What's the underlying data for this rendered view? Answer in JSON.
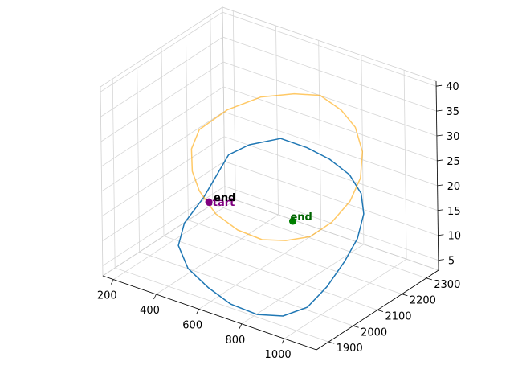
{
  "chart_data": {
    "type": "line3d",
    "title": "",
    "xlabel": "",
    "ylabel": "",
    "zlabel": "",
    "xlim": [
      150,
      1150
    ],
    "ylim": [
      1850,
      2350
    ],
    "zlim": [
      3,
      41
    ],
    "xticks": [
      200,
      400,
      600,
      800,
      1000
    ],
    "yticks": [
      1900,
      2000,
      2100,
      2200,
      2300
    ],
    "zticks": [
      5,
      10,
      15,
      20,
      25,
      30,
      35,
      40
    ],
    "series": [
      {
        "color": "#1f77b4",
        "alpha": 1.0,
        "points": [
          [
            390,
            2160,
            21
          ],
          [
            430,
            2210,
            22
          ],
          [
            520,
            2260,
            23
          ],
          [
            620,
            2280,
            22
          ],
          [
            720,
            2285,
            21
          ],
          [
            830,
            2270,
            20
          ],
          [
            930,
            2230,
            19
          ],
          [
            1010,
            2170,
            18
          ],
          [
            1060,
            2100,
            16
          ],
          [
            1080,
            2030,
            14
          ],
          [
            1075,
            1960,
            11
          ],
          [
            1040,
            1910,
            8
          ],
          [
            960,
            1880,
            6
          ],
          [
            850,
            1870,
            5
          ],
          [
            720,
            1875,
            5
          ],
          [
            600,
            1890,
            6
          ],
          [
            470,
            1920,
            7
          ],
          [
            380,
            1960,
            9
          ],
          [
            340,
            2020,
            11
          ],
          [
            350,
            2090,
            14
          ],
          [
            390,
            2160,
            21
          ]
        ]
      },
      {
        "color": "#ffa500",
        "alpha": 0.6,
        "points": [
          [
            300,
            2120,
            26
          ],
          [
            340,
            2200,
            28
          ],
          [
            430,
            2260,
            30
          ],
          [
            540,
            2300,
            31
          ],
          [
            650,
            2310,
            32
          ],
          [
            760,
            2300,
            31
          ],
          [
            860,
            2270,
            30
          ],
          [
            950,
            2220,
            28
          ],
          [
            1020,
            2150,
            26
          ],
          [
            1050,
            2080,
            24
          ],
          [
            1045,
            2010,
            22
          ],
          [
            1000,
            1960,
            20
          ],
          [
            920,
            1930,
            19
          ],
          [
            820,
            1920,
            18
          ],
          [
            700,
            1925,
            18
          ],
          [
            580,
            1940,
            19
          ],
          [
            470,
            1970,
            21
          ],
          [
            380,
            2020,
            22
          ],
          [
            320,
            2070,
            24
          ],
          [
            300,
            2120,
            26
          ]
        ]
      }
    ],
    "markers": [
      {
        "label": "start",
        "color": "#800080",
        "point": [
          410,
          2060,
          15
        ]
      },
      {
        "label": "end",
        "color": "#008000",
        "point": [
          780,
          2080,
          16
        ]
      }
    ],
    "annotations": [
      {
        "text": "start",
        "color": "#800080"
      },
      {
        "text": "end",
        "color": "#000000"
      },
      {
        "text": "end",
        "color": "#006400"
      }
    ]
  }
}
